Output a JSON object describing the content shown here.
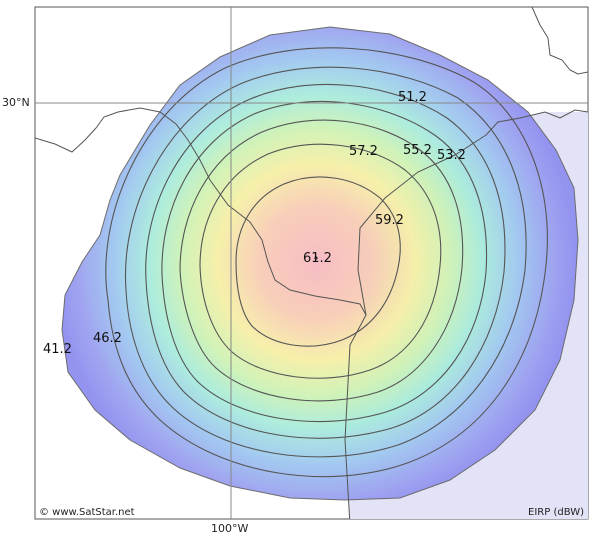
{
  "map": {
    "lat_label": "30°N",
    "lon_label": "100°W",
    "copyright": "© www.SatStar.net",
    "legend_unit": "EIRP (dBW)",
    "contour_labels": [
      "61.2",
      "59.2",
      "57.2",
      "55.2",
      "53.2",
      "51.2",
      "46.2",
      "41.2"
    ]
  }
}
